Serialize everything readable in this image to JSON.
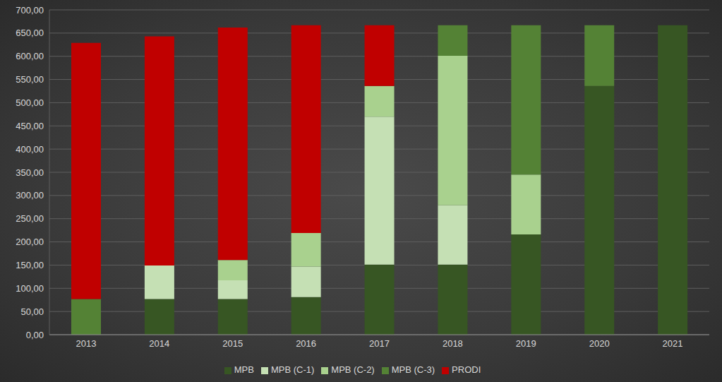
{
  "chart_data": {
    "type": "bar",
    "stacked": true,
    "grid": true,
    "legend": "bottom",
    "categories": [
      "2013",
      "2014",
      "2015",
      "2016",
      "2017",
      "2018",
      "2019",
      "2020",
      "2021"
    ],
    "series": [
      {
        "name": "MPB",
        "color": "#375623",
        "values": [
          0,
          77,
          77,
          81,
          151,
          151,
          216,
          536,
          667
        ]
      },
      {
        "name": "MPB (C-1)",
        "color": "#c5e0b4",
        "values": [
          0,
          72,
          40,
          66,
          319,
          128,
          0,
          0,
          0
        ]
      },
      {
        "name": "MPB (C-2)",
        "color": "#a9d18e",
        "values": [
          0,
          0,
          44,
          72,
          66,
          322,
          129,
          0,
          0
        ]
      },
      {
        "name": "MPB (C-3)",
        "color": "#548235",
        "values": [
          77,
          0,
          0,
          0,
          0,
          66,
          322,
          131,
          0
        ]
      },
      {
        "name": "PRODI",
        "color": "#c00000",
        "values": [
          552,
          494,
          501,
          448,
          131,
          0,
          0,
          0,
          0
        ]
      }
    ],
    "ylim": [
      0,
      700
    ],
    "yticks": [
      {
        "value": 0,
        "label": "0,00"
      },
      {
        "value": 50,
        "label": "50,00"
      },
      {
        "value": 100,
        "label": "100,00"
      },
      {
        "value": 150,
        "label": "150,00"
      },
      {
        "value": 200,
        "label": "200,00"
      },
      {
        "value": 250,
        "label": "250,00"
      },
      {
        "value": 300,
        "label": "300,00"
      },
      {
        "value": 350,
        "label": "350,00"
      },
      {
        "value": 400,
        "label": "400,00"
      },
      {
        "value": 450,
        "label": "450,00"
      },
      {
        "value": 500,
        "label": "500,00"
      },
      {
        "value": 550,
        "label": "550,00"
      },
      {
        "value": 600,
        "label": "600,00"
      },
      {
        "value": 650,
        "label": "650,00"
      },
      {
        "value": 700,
        "label": "700,00"
      }
    ]
  }
}
